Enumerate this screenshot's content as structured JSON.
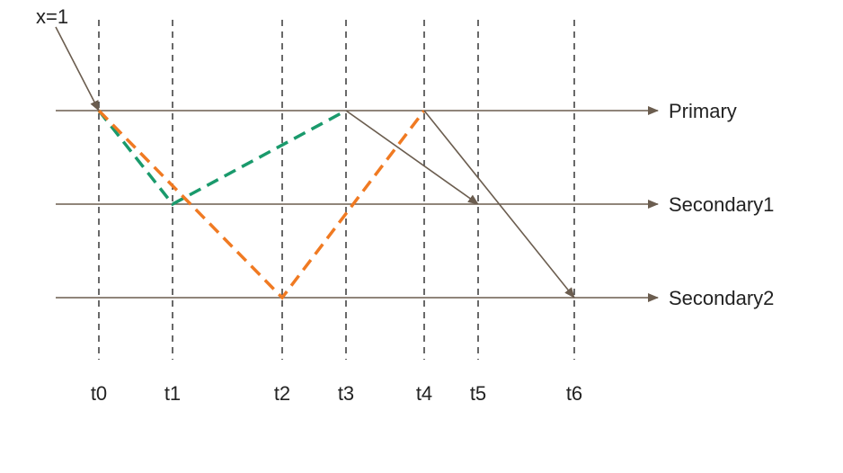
{
  "annotation": "x=1",
  "lines": [
    {
      "key": "primary",
      "label": "Primary"
    },
    {
      "key": "secondary1",
      "label": "Secondary1"
    },
    {
      "key": "secondary2",
      "label": "Secondary2"
    }
  ],
  "time_marks": [
    "t0",
    "t1",
    "t2",
    "t3",
    "t4",
    "t5",
    "t6"
  ],
  "colors": {
    "line": "#6b5d4f",
    "guide": "#444444",
    "green_path": "#1a9a6c",
    "orange_path": "#f07a22"
  }
}
